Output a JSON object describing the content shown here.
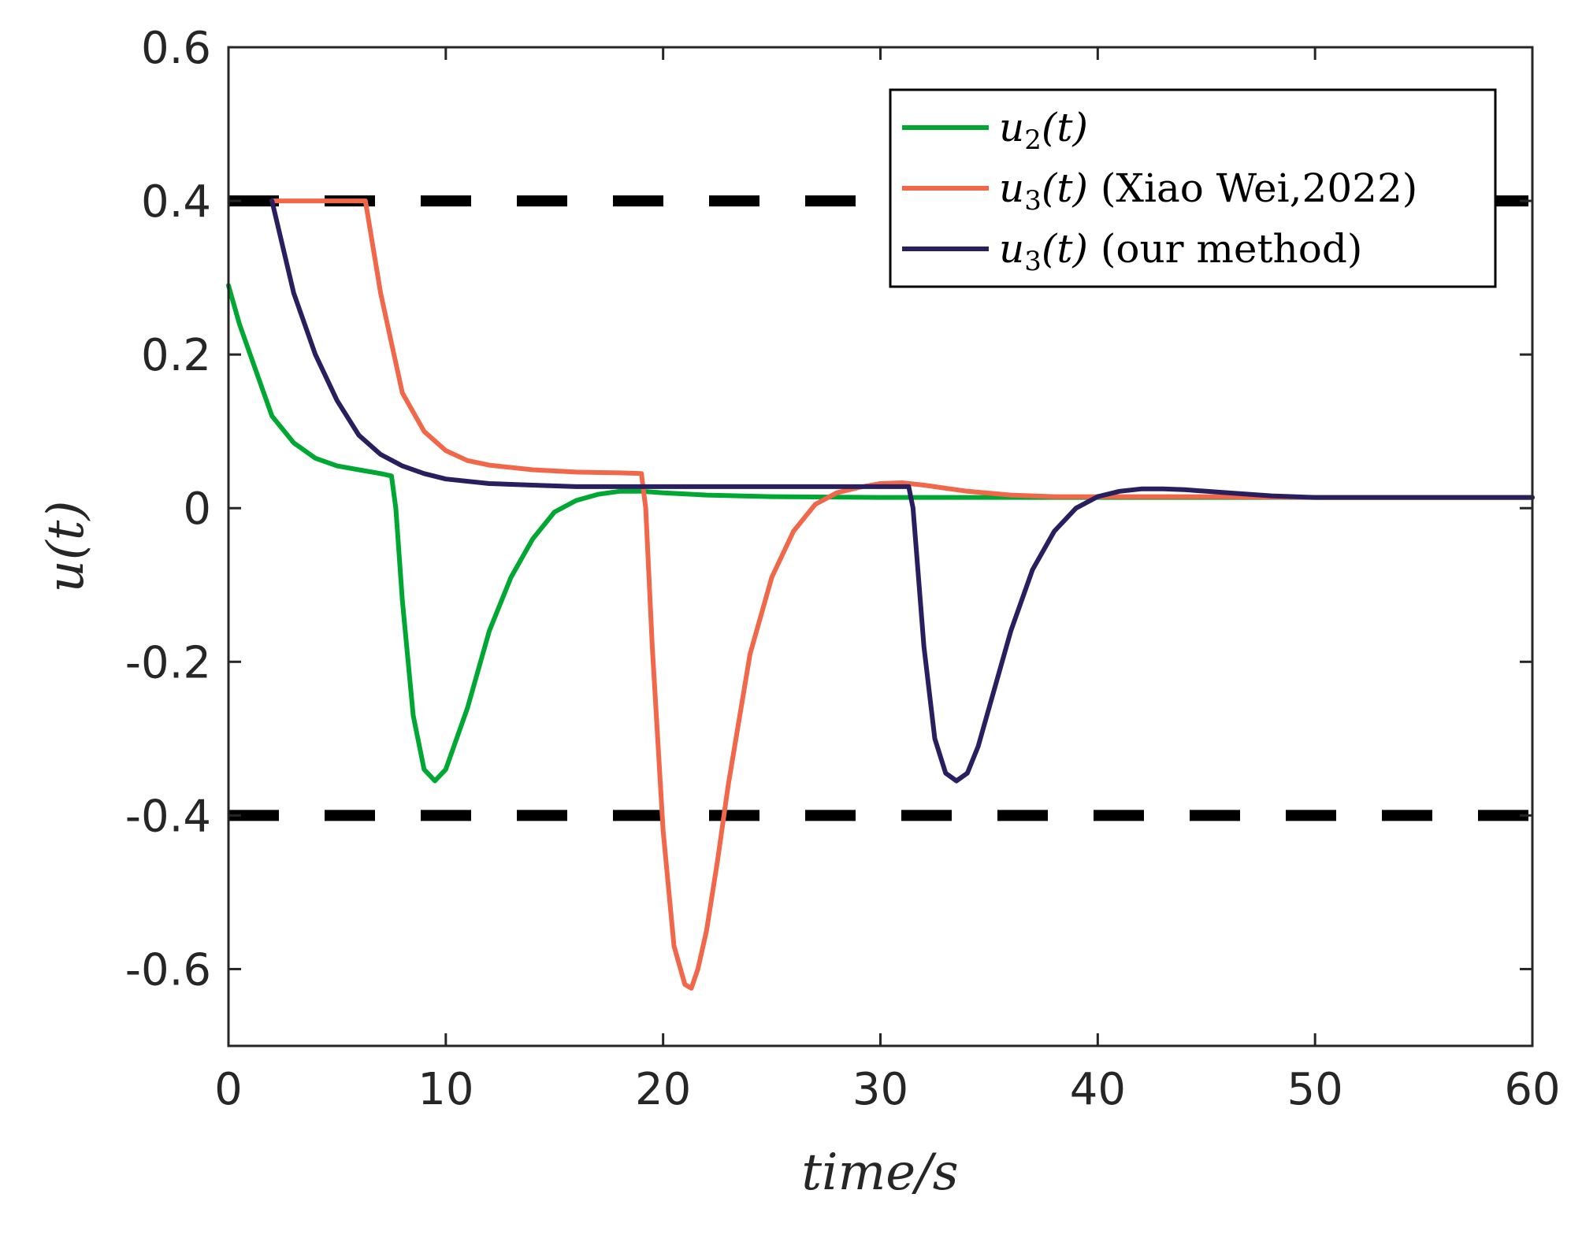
{
  "chart_data": {
    "type": "line",
    "xlabel": "time/s",
    "ylabel": "u(t)",
    "xlim": [
      0,
      60
    ],
    "ylim": [
      -0.7,
      0.6
    ],
    "xticks": [
      0,
      10,
      20,
      30,
      40,
      50,
      60
    ],
    "yticks": [
      -0.6,
      -0.4,
      -0.2,
      0,
      0.2,
      0.4,
      0.6
    ],
    "xtick_labels": [
      "0",
      "10",
      "20",
      "30",
      "40",
      "50",
      "60"
    ],
    "ytick_labels": [
      "-0.6",
      "-0.4",
      "-0.2",
      "0",
      "0.2",
      "0.4",
      "0.6"
    ],
    "legend_position": "top-right",
    "bounds": {
      "upper": 0.4,
      "lower": -0.4,
      "style": "dashed",
      "color": "#000000"
    },
    "series": [
      {
        "name": "u2(t)",
        "legend_math": "u",
        "legend_sub": "2",
        "legend_args": "(t)",
        "legend_note": "",
        "color": "#00A833",
        "x": [
          0,
          0.5,
          1,
          1.5,
          2,
          3,
          4,
          5,
          6,
          7,
          7.5,
          7.7,
          8,
          8.5,
          9,
          9.5,
          10,
          11,
          12,
          13,
          14,
          15,
          16,
          17,
          18,
          19,
          20,
          22,
          25,
          30,
          35,
          40,
          45,
          50,
          55,
          60
        ],
        "y": [
          0.29,
          0.24,
          0.2,
          0.16,
          0.12,
          0.085,
          0.065,
          0.055,
          0.05,
          0.045,
          0.042,
          0.0,
          -0.12,
          -0.27,
          -0.34,
          -0.355,
          -0.34,
          -0.26,
          -0.16,
          -0.09,
          -0.04,
          -0.005,
          0.01,
          0.018,
          0.022,
          0.022,
          0.02,
          0.017,
          0.015,
          0.014,
          0.014,
          0.014,
          0.014,
          0.014,
          0.014,
          0.014
        ]
      },
      {
        "name": "u3(t) (Xiao Wei,2022)",
        "legend_math": "u",
        "legend_sub": "3",
        "legend_args": "(t)",
        "legend_note": "(Xiao Wei,2022)",
        "color": "#F0674A",
        "x": [
          2,
          4,
          6,
          6.3,
          7,
          8,
          9,
          10,
          11,
          12,
          14,
          16,
          18,
          19,
          19.2,
          19.5,
          20,
          20.5,
          21,
          21.3,
          21.6,
          22,
          22.5,
          23,
          24,
          25,
          26,
          27,
          28,
          29,
          30,
          31,
          32,
          34,
          36,
          38,
          40,
          45,
          50,
          55,
          60
        ],
        "y": [
          0.4,
          0.4,
          0.4,
          0.4,
          0.28,
          0.15,
          0.1,
          0.075,
          0.062,
          0.056,
          0.05,
          0.047,
          0.046,
          0.045,
          0.0,
          -0.18,
          -0.42,
          -0.57,
          -0.62,
          -0.625,
          -0.6,
          -0.55,
          -0.46,
          -0.36,
          -0.19,
          -0.09,
          -0.03,
          0.005,
          0.02,
          0.027,
          0.032,
          0.033,
          0.03,
          0.022,
          0.017,
          0.015,
          0.015,
          0.015,
          0.014,
          0.014,
          0.014
        ]
      },
      {
        "name": "u3(t) (our method)",
        "legend_math": "u",
        "legend_sub": "3",
        "legend_args": "(t)",
        "legend_note": "(our method)",
        "color": "#2A1F5E",
        "x": [
          2,
          2.5,
          3,
          4,
          5,
          6,
          7,
          8,
          9,
          10,
          12,
          14,
          16,
          20,
          25,
          30,
          31.3,
          31.5,
          32,
          32.5,
          33,
          33.5,
          34,
          34.5,
          35,
          36,
          37,
          38,
          39,
          40,
          41,
          42,
          43,
          44,
          45,
          46,
          48,
          50,
          55,
          60
        ],
        "y": [
          0.4,
          0.34,
          0.28,
          0.2,
          0.14,
          0.095,
          0.07,
          0.055,
          0.045,
          0.038,
          0.032,
          0.03,
          0.028,
          0.028,
          0.028,
          0.028,
          0.028,
          0.0,
          -0.18,
          -0.3,
          -0.345,
          -0.355,
          -0.345,
          -0.31,
          -0.26,
          -0.16,
          -0.08,
          -0.03,
          0.0,
          0.015,
          0.022,
          0.025,
          0.025,
          0.024,
          0.022,
          0.02,
          0.016,
          0.014,
          0.014,
          0.014
        ]
      }
    ]
  }
}
